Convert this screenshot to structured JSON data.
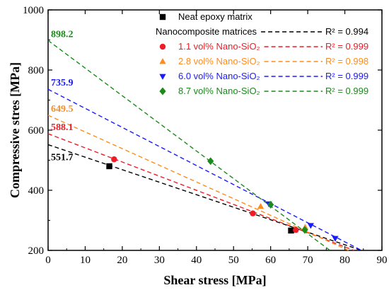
{
  "chart_data": {
    "type": "scatter",
    "title": "",
    "xlabel": "Shear stress [MPa]",
    "ylabel": "Compressive stres [MPa]",
    "xlim": [
      0,
      90
    ],
    "ylim": [
      200,
      1000
    ],
    "x_ticks": [
      0,
      10,
      20,
      30,
      40,
      50,
      60,
      70,
      80,
      90
    ],
    "y_ticks": [
      200,
      400,
      600,
      800,
      1000
    ],
    "grid": false,
    "legend_position": "top-right",
    "legend_group_label": "Nanocomposite matrices",
    "series": [
      {
        "name": "Neat epoxy matrix",
        "color": "#000000",
        "marker": "square",
        "r2_label": "R² = 0.994",
        "intercept_label": "551.7",
        "fit": {
          "intercept": 551.7,
          "x_end": 84.5
        },
        "points": [
          [
            16.5,
            480
          ],
          [
            65.5,
            266
          ]
        ]
      },
      {
        "name": "1.1 vol% Nano-SiO₂",
        "color": "#ee1c25",
        "marker": "circle",
        "r2_label": "R² = 0.999",
        "intercept_label": "588.1",
        "fit": {
          "intercept": 588.1,
          "x_end": 82.5
        },
        "points": [
          [
            17.8,
            503
          ],
          [
            55.2,
            323
          ],
          [
            66.8,
            268
          ]
        ]
      },
      {
        "name": "2.8 vol% Nano-SiO₂",
        "color": "#ff8c1a",
        "marker": "triangle-up",
        "r2_label": "R² = 0.998",
        "intercept_label": "649.5",
        "fit": {
          "intercept": 649.5,
          "x_end": 81.0
        },
        "points": [
          [
            57.3,
            346
          ],
          [
            69.3,
            277
          ]
        ]
      },
      {
        "name": "6.0 vol% Nano-SiO₂",
        "color": "#1a1aff",
        "marker": "triangle-down",
        "r2_label": "R² = 0.999",
        "intercept_label": "735.9",
        "fit": {
          "intercept": 735.9,
          "x_end": 84.5
        },
        "points": [
          [
            59.5,
            355
          ],
          [
            70.8,
            283
          ],
          [
            77.4,
            240
          ]
        ]
      },
      {
        "name": "8.7 vol% Nano-SiO₂",
        "color": "#1a8a1a",
        "marker": "diamond",
        "r2_label": "R² = 0.999",
        "intercept_label": "898.2",
        "fit": {
          "intercept": 898.2,
          "x_end": 76.0
        },
        "points": [
          [
            43.8,
            497
          ],
          [
            60.0,
            352
          ],
          [
            69.2,
            268
          ]
        ]
      }
    ]
  }
}
